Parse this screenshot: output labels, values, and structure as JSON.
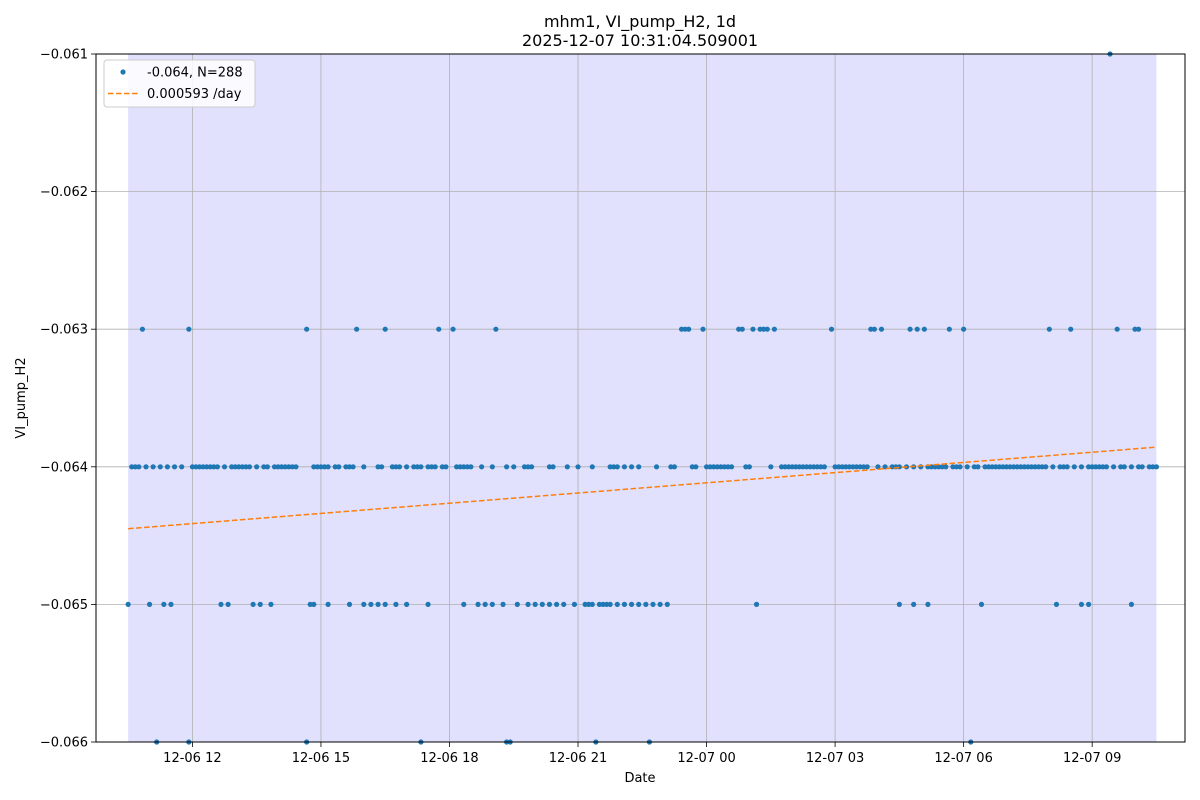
{
  "chart_data": {
    "type": "scatter",
    "title": "mhm1, VI_pump_H2, 1d",
    "subtitle": "2025-12-07 10:31:04.509001",
    "xlabel": "Date",
    "ylabel": "VI_pump_H2",
    "x_axis_type": "datetime",
    "xlim": [
      "2025-12-06 09:45",
      "2025-12-07 11:10"
    ],
    "ylim": [
      -0.066,
      -0.061
    ],
    "shaded_range": [
      "2025-12-06 10:30",
      "2025-12-07 10:30"
    ],
    "shaded_color": "#e1e1fd",
    "grid": true,
    "legend_position": "top-left",
    "x_ticks": [
      {
        "value": "2025-12-06 12:00",
        "label": "12-06 12"
      },
      {
        "value": "2025-12-06 15:00",
        "label": "12-06 15"
      },
      {
        "value": "2025-12-06 18:00",
        "label": "12-06 18"
      },
      {
        "value": "2025-12-06 21:00",
        "label": "12-06 21"
      },
      {
        "value": "2025-12-07 00:00",
        "label": "12-07 00"
      },
      {
        "value": "2025-12-07 03:00",
        "label": "12-07 03"
      },
      {
        "value": "2025-12-07 06:00",
        "label": "12-07 06"
      },
      {
        "value": "2025-12-07 09:00",
        "label": "12-07 09"
      }
    ],
    "y_ticks": [
      {
        "value": -0.061,
        "label": "−0.061"
      },
      {
        "value": -0.062,
        "label": "−0.062"
      },
      {
        "value": -0.063,
        "label": "−0.063"
      },
      {
        "value": -0.064,
        "label": "−0.064"
      },
      {
        "value": -0.065,
        "label": "−0.065"
      },
      {
        "value": -0.066,
        "label": "−0.066"
      }
    ],
    "series": [
      {
        "name": "-0.064, N=288",
        "kind": "scatter",
        "color": "#1f77b4",
        "levels": [
          {
            "y": -0.061,
            "x": [
              "2025-12-07 09:25"
            ]
          },
          {
            "y": -0.063,
            "x": [
              "2025-12-06 10:50",
              "2025-12-06 11:55",
              "2025-12-06 14:40",
              "2025-12-06 15:50",
              "2025-12-06 16:30",
              "2025-12-06 17:45",
              "2025-12-06 18:05",
              "2025-12-06 19:05",
              "2025-12-06 23:25",
              "2025-12-06 23:30",
              "2025-12-06 23:35",
              "2025-12-06 23:55",
              "2025-12-07 00:45",
              "2025-12-07 00:50",
              "2025-12-07 01:05",
              "2025-12-07 01:15",
              "2025-12-07 01:20",
              "2025-12-07 01:25",
              "2025-12-07 01:35",
              "2025-12-07 02:55",
              "2025-12-07 03:50",
              "2025-12-07 03:55",
              "2025-12-07 04:05",
              "2025-12-07 04:45",
              "2025-12-07 04:55",
              "2025-12-07 05:05",
              "2025-12-07 05:40",
              "2025-12-07 06:00",
              "2025-12-07 08:00",
              "2025-12-07 08:30",
              "2025-12-07 09:35",
              "2025-12-07 10:00",
              "2025-12-07 10:05"
            ]
          },
          {
            "y": -0.064,
            "x": [
              "2025-12-06 10:35",
              "2025-12-06 10:40",
              "2025-12-06 10:45",
              "2025-12-06 10:55",
              "2025-12-06 11:05",
              "2025-12-06 11:15",
              "2025-12-06 11:25",
              "2025-12-06 11:35",
              "2025-12-06 11:45",
              "2025-12-06 12:00",
              "2025-12-06 12:05",
              "2025-12-06 12:10",
              "2025-12-06 12:15",
              "2025-12-06 12:20",
              "2025-12-06 12:25",
              "2025-12-06 12:30",
              "2025-12-06 12:35",
              "2025-12-06 12:45",
              "2025-12-06 12:55",
              "2025-12-06 13:00",
              "2025-12-06 13:05",
              "2025-12-06 13:10",
              "2025-12-06 13:15",
              "2025-12-06 13:20",
              "2025-12-06 13:30",
              "2025-12-06 13:40",
              "2025-12-06 13:45",
              "2025-12-06 13:55",
              "2025-12-06 14:00",
              "2025-12-06 14:05",
              "2025-12-06 14:10",
              "2025-12-06 14:15",
              "2025-12-06 14:20",
              "2025-12-06 14:25",
              "2025-12-06 14:50",
              "2025-12-06 14:55",
              "2025-12-06 15:00",
              "2025-12-06 15:05",
              "2025-12-06 15:10",
              "2025-12-06 15:20",
              "2025-12-06 15:25",
              "2025-12-06 15:35",
              "2025-12-06 15:40",
              "2025-12-06 15:45",
              "2025-12-06 16:00",
              "2025-12-06 16:20",
              "2025-12-06 16:25",
              "2025-12-06 16:40",
              "2025-12-06 16:45",
              "2025-12-06 16:50",
              "2025-12-06 17:00",
              "2025-12-06 17:10",
              "2025-12-06 17:15",
              "2025-12-06 17:20",
              "2025-12-06 17:30",
              "2025-12-06 17:35",
              "2025-12-06 17:40",
              "2025-12-06 17:50",
              "2025-12-06 17:55",
              "2025-12-06 18:10",
              "2025-12-06 18:15",
              "2025-12-06 18:20",
              "2025-12-06 18:25",
              "2025-12-06 18:30",
              "2025-12-06 18:45",
              "2025-12-06 19:00",
              "2025-12-06 19:20",
              "2025-12-06 19:30",
              "2025-12-06 19:45",
              "2025-12-06 19:50",
              "2025-12-06 19:55",
              "2025-12-06 20:20",
              "2025-12-06 20:25",
              "2025-12-06 20:45",
              "2025-12-06 21:00",
              "2025-12-06 21:20",
              "2025-12-06 21:45",
              "2025-12-06 21:50",
              "2025-12-06 21:55",
              "2025-12-06 22:05",
              "2025-12-06 22:15",
              "2025-12-06 22:25",
              "2025-12-06 22:50",
              "2025-12-06 23:10",
              "2025-12-06 23:15",
              "2025-12-06 23:40",
              "2025-12-06 23:45",
              "2025-12-07 00:00",
              "2025-12-07 00:05",
              "2025-12-07 00:10",
              "2025-12-07 00:15",
              "2025-12-07 00:20",
              "2025-12-07 00:25",
              "2025-12-07 00:30",
              "2025-12-07 00:35",
              "2025-12-07 00:55",
              "2025-12-07 01:00",
              "2025-12-07 01:30",
              "2025-12-07 01:45",
              "2025-12-07 01:50",
              "2025-12-07 01:55",
              "2025-12-07 02:00",
              "2025-12-07 02:05",
              "2025-12-07 02:10",
              "2025-12-07 02:15",
              "2025-12-07 02:20",
              "2025-12-07 02:25",
              "2025-12-07 02:30",
              "2025-12-07 02:35",
              "2025-12-07 02:40",
              "2025-12-07 02:45",
              "2025-12-07 03:00",
              "2025-12-07 03:05",
              "2025-12-07 03:10",
              "2025-12-07 03:15",
              "2025-12-07 03:20",
              "2025-12-07 03:25",
              "2025-12-07 03:30",
              "2025-12-07 03:35",
              "2025-12-07 03:40",
              "2025-12-07 03:45",
              "2025-12-07 04:00",
              "2025-12-07 04:10",
              "2025-12-07 04:20",
              "2025-12-07 04:25",
              "2025-12-07 04:30",
              "2025-12-07 04:40",
              "2025-12-07 04:50",
              "2025-12-07 05:00",
              "2025-12-07 05:10",
              "2025-12-07 05:15",
              "2025-12-07 05:20",
              "2025-12-07 05:25",
              "2025-12-07 05:30",
              "2025-12-07 05:35",
              "2025-12-07 05:45",
              "2025-12-07 05:50",
              "2025-12-07 05:55",
              "2025-12-07 06:05",
              "2025-12-07 06:15",
              "2025-12-07 06:20",
              "2025-12-07 06:30",
              "2025-12-07 06:35",
              "2025-12-07 06:40",
              "2025-12-07 06:45",
              "2025-12-07 06:50",
              "2025-12-07 06:55",
              "2025-12-07 07:00",
              "2025-12-07 07:05",
              "2025-12-07 07:10",
              "2025-12-07 07:15",
              "2025-12-07 07:20",
              "2025-12-07 07:25",
              "2025-12-07 07:30",
              "2025-12-07 07:35",
              "2025-12-07 07:40",
              "2025-12-07 07:45",
              "2025-12-07 07:50",
              "2025-12-07 07:55",
              "2025-12-07 08:05",
              "2025-12-07 08:15",
              "2025-12-07 08:20",
              "2025-12-07 08:25",
              "2025-12-07 08:35",
              "2025-12-07 08:45",
              "2025-12-07 08:55",
              "2025-12-07 09:00",
              "2025-12-07 09:05",
              "2025-12-07 09:10",
              "2025-12-07 09:15",
              "2025-12-07 09:20",
              "2025-12-07 09:30",
              "2025-12-07 09:40",
              "2025-12-07 09:45",
              "2025-12-07 09:55",
              "2025-12-07 10:05",
              "2025-12-07 10:10",
              "2025-12-07 10:20",
              "2025-12-07 10:25",
              "2025-12-07 10:30"
            ]
          },
          {
            "y": -0.065,
            "x": [
              "2025-12-06 10:30",
              "2025-12-06 11:00",
              "2025-12-06 11:20",
              "2025-12-06 11:30",
              "2025-12-06 12:40",
              "2025-12-06 12:50",
              "2025-12-06 13:25",
              "2025-12-06 13:35",
              "2025-12-06 13:50",
              "2025-12-06 14:45",
              "2025-12-06 14:50",
              "2025-12-06 15:10",
              "2025-12-06 15:40",
              "2025-12-06 16:00",
              "2025-12-06 16:10",
              "2025-12-06 16:20",
              "2025-12-06 16:30",
              "2025-12-06 16:45",
              "2025-12-06 17:00",
              "2025-12-06 17:30",
              "2025-12-06 18:20",
              "2025-12-06 18:40",
              "2025-12-06 18:50",
              "2025-12-06 19:00",
              "2025-12-06 19:15",
              "2025-12-06 19:35",
              "2025-12-06 19:50",
              "2025-12-06 20:00",
              "2025-12-06 20:10",
              "2025-12-06 20:20",
              "2025-12-06 20:30",
              "2025-12-06 20:40",
              "2025-12-06 20:55",
              "2025-12-06 21:10",
              "2025-12-06 21:15",
              "2025-12-06 21:20",
              "2025-12-06 21:30",
              "2025-12-06 21:35",
              "2025-12-06 21:40",
              "2025-12-06 21:45",
              "2025-12-06 21:55",
              "2025-12-06 22:05",
              "2025-12-06 22:15",
              "2025-12-06 22:25",
              "2025-12-06 22:35",
              "2025-12-06 22:45",
              "2025-12-06 22:55",
              "2025-12-06 23:05",
              "2025-12-07 01:10",
              "2025-12-07 04:30",
              "2025-12-07 04:50",
              "2025-12-07 05:10",
              "2025-12-07 06:25",
              "2025-12-07 08:10",
              "2025-12-07 08:45",
              "2025-12-07 08:55",
              "2025-12-07 09:55"
            ]
          },
          {
            "y": -0.066,
            "x": [
              "2025-12-06 11:10",
              "2025-12-06 11:55",
              "2025-12-06 14:40",
              "2025-12-06 17:20",
              "2025-12-06 19:20",
              "2025-12-06 19:25",
              "2025-12-06 21:25",
              "2025-12-06 22:40",
              "2025-12-07 06:10"
            ]
          }
        ]
      },
      {
        "name": "0.000593 /day",
        "kind": "line",
        "style": "dashed",
        "color": "#ff7f0e",
        "x": [
          "2025-12-06 10:30",
          "2025-12-07 10:30"
        ],
        "y": [
          -0.06445,
          -0.063857
        ]
      }
    ]
  }
}
